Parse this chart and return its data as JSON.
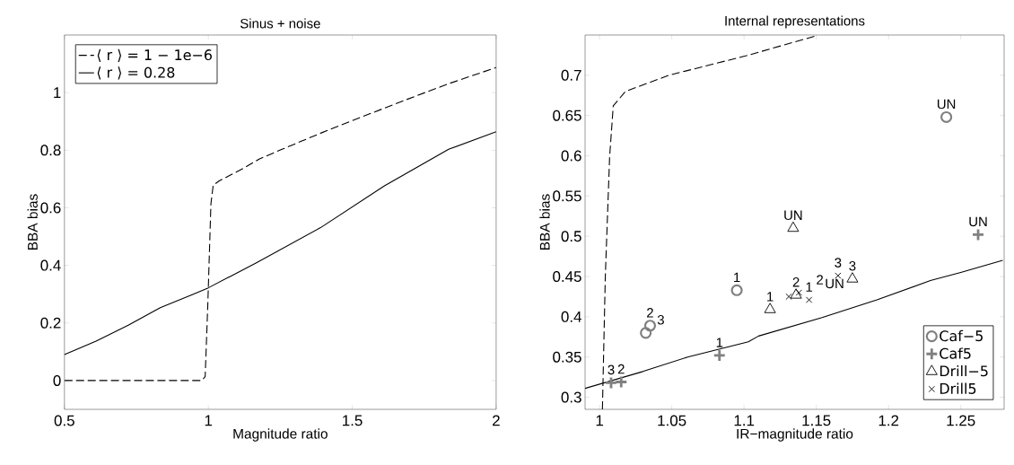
{
  "chart_data": [
    {
      "type": "line",
      "title": "Sinus + noise",
      "xlabel": "Magnitude ratio",
      "ylabel": "BBA bias",
      "xlim": [
        0.5,
        2
      ],
      "ylim": [
        -0.1,
        1.2
      ],
      "xticks": [
        0.5,
        1,
        1.5,
        2
      ],
      "yticks": [
        0,
        0.2,
        0.4,
        0.6,
        0.8,
        1
      ],
      "grid": false,
      "legend": "top left",
      "series": [
        {
          "name": "⟨ r ⟩ = 1 − 1e−6",
          "color": "#000000",
          "line_style": "dashed",
          "x": [
            0.5,
            0.978,
            0.989,
            0.998,
            1.009,
            1.017,
            1.039,
            1.122,
            1.178,
            1.256,
            1.323,
            1.39,
            1.501,
            1.668,
            1.835,
            2.0
          ],
          "values": [
            0,
            0,
            0.014,
            0.259,
            0.614,
            0.679,
            0.694,
            0.737,
            0.77,
            0.803,
            0.831,
            0.859,
            0.903,
            0.968,
            1.031,
            1.087
          ]
        },
        {
          "name": "⟨ r ⟩ = 0.28",
          "color": "#000000",
          "line_style": "solid",
          "x": [
            0.5,
            0.61,
            0.722,
            0.833,
            0.944,
            1.0,
            1.167,
            1.39,
            1.612,
            1.835,
            2.0
          ],
          "values": [
            0.09,
            0.137,
            0.192,
            0.253,
            0.298,
            0.322,
            0.409,
            0.531,
            0.676,
            0.803,
            0.864
          ]
        }
      ]
    },
    {
      "type": "scatter",
      "title": "Internal representations",
      "xlabel": "IR−magnitude ratio",
      "ylabel": "BBA bias",
      "xlim": [
        0.99,
        1.28
      ],
      "ylim": [
        0.285,
        0.75
      ],
      "xticks": [
        1,
        1.05,
        1.1,
        1.15,
        1.2,
        1.25
      ],
      "yticks": [
        0.3,
        0.35,
        0.4,
        0.45,
        0.5,
        0.55,
        0.6,
        0.65,
        0.7
      ],
      "grid": false,
      "legend": "bottom right",
      "series": [
        {
          "type": "line",
          "color": "#000000",
          "line_style": "dashed",
          "x": [
            1.002,
            1.004,
            1.007,
            1.0095,
            1.018,
            1.048,
            1.101,
            1.15
          ],
          "values": [
            0.285,
            0.45,
            0.599,
            0.662,
            0.68,
            0.7,
            0.724,
            0.749
          ]
        },
        {
          "type": "line",
          "color": "#000000",
          "line_style": "solid",
          "x": [
            0.99,
            1.03,
            1.061,
            1.103,
            1.11,
            1.154,
            1.192,
            1.229,
            1.25,
            1.279
          ],
          "values": [
            0.311,
            0.332,
            0.35,
            0.369,
            0.376,
            0.399,
            0.421,
            0.445,
            0.455,
            0.47
          ]
        },
        {
          "name": "Caf−5",
          "color": "#808080",
          "marker": "circle",
          "x": [
            1.095,
            1.035,
            1.032,
            1.24
          ],
          "values": [
            0.433,
            0.389,
            0.38,
            0.648
          ]
        },
        {
          "name": "Caf5",
          "color": "#808080",
          "marker": "plus",
          "x": [
            1.083,
            1.015,
            1.008,
            1.262
          ],
          "values": [
            0.352,
            0.319,
            0.318,
            0.502
          ]
        },
        {
          "name": "Drill−5",
          "color": "#000000",
          "marker": "triangle",
          "x": [
            1.118,
            1.136,
            1.175,
            1.134
          ],
          "values": [
            0.409,
            0.427,
            0.447,
            0.51
          ]
        },
        {
          "name": "Drill5",
          "color": "#000000",
          "marker": "cross",
          "x": [
            1.145,
            1.138,
            1.165,
            1.131
          ],
          "values": [
            0.421,
            0.43,
            0.451,
            0.425
          ]
        }
      ],
      "annotations": [
        {
          "text": "1",
          "x": 1.095,
          "y": 0.433
        },
        {
          "text": "2",
          "x": 1.035,
          "y": 0.389
        },
        {
          "text": "3",
          "x": 1.032,
          "y": 0.38
        },
        {
          "text": "UN",
          "x": 1.24,
          "y": 0.648
        },
        {
          "text": "1",
          "x": 1.083,
          "y": 0.352
        },
        {
          "text": "2",
          "x": 1.015,
          "y": 0.319
        },
        {
          "text": "3",
          "x": 1.008,
          "y": 0.318
        },
        {
          "text": "UN",
          "x": 1.262,
          "y": 0.502
        },
        {
          "text": "1",
          "x": 1.118,
          "y": 0.409
        },
        {
          "text": "2",
          "x": 1.136,
          "y": 0.427
        },
        {
          "text": "3",
          "x": 1.175,
          "y": 0.447
        },
        {
          "text": "UN",
          "x": 1.134,
          "y": 0.51
        },
        {
          "text": "1",
          "x": 1.145,
          "y": 0.421
        },
        {
          "text": "2",
          "x": 1.138,
          "y": 0.43
        },
        {
          "text": "3",
          "x": 1.165,
          "y": 0.451
        },
        {
          "text": "UN",
          "x": 1.131,
          "y": 0.425
        }
      ]
    }
  ]
}
